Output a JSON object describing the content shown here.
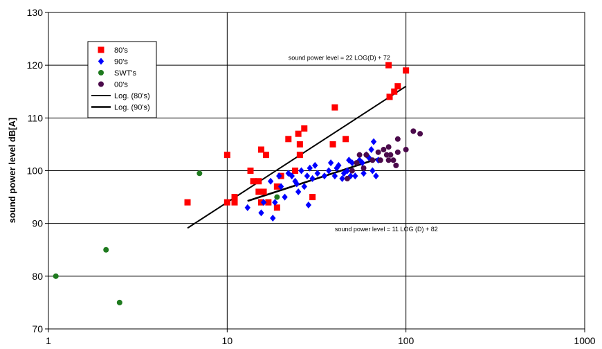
{
  "chart_data": {
    "type": "scatter",
    "title": "",
    "xlabel": "",
    "ylabel": "sound power level dB[A]",
    "x_scale": "log",
    "xlim": [
      1,
      1000
    ],
    "ylim": [
      70,
      130
    ],
    "x_ticks": [
      1,
      10,
      100,
      1000
    ],
    "x_tick_labels": [
      "1",
      "10",
      "100",
      "1000"
    ],
    "y_ticks": [
      70,
      80,
      90,
      100,
      110,
      120,
      130
    ],
    "y_tick_labels": [
      "70",
      "80",
      "90",
      "100",
      "110",
      "120",
      "130"
    ],
    "grid": true,
    "legend_position": "top-left",
    "series": [
      {
        "name": "80's",
        "marker": "square",
        "color": "#ff0000",
        "points": [
          [
            6,
            94
          ],
          [
            10,
            103
          ],
          [
            10,
            94
          ],
          [
            11,
            94
          ],
          [
            11,
            95
          ],
          [
            13.5,
            100
          ],
          [
            14,
            98
          ],
          [
            15,
            98
          ],
          [
            15,
            96
          ],
          [
            15.5,
            104
          ],
          [
            15.5,
            94
          ],
          [
            16,
            96
          ],
          [
            16.5,
            103
          ],
          [
            17,
            94
          ],
          [
            19,
            97
          ],
          [
            19,
            93
          ],
          [
            20,
            99
          ],
          [
            22,
            106
          ],
          [
            24,
            100
          ],
          [
            25,
            107
          ],
          [
            25.5,
            103
          ],
          [
            25.5,
            105
          ],
          [
            27,
            108
          ],
          [
            30,
            95
          ],
          [
            39,
            105
          ],
          [
            40,
            112
          ],
          [
            46,
            106
          ],
          [
            80,
            120
          ],
          [
            81,
            114
          ],
          [
            86,
            115
          ],
          [
            90,
            116
          ],
          [
            100,
            119
          ]
        ]
      },
      {
        "name": "90's",
        "marker": "diamond",
        "color": "#0000ff",
        "points": [
          [
            13,
            93
          ],
          [
            15.5,
            92
          ],
          [
            16,
            94
          ],
          [
            17.5,
            98
          ],
          [
            18,
            91
          ],
          [
            18.5,
            94
          ],
          [
            19.5,
            99
          ],
          [
            20,
            97
          ],
          [
            21,
            95
          ],
          [
            22,
            99.5
          ],
          [
            23,
            99
          ],
          [
            24,
            98
          ],
          [
            24.5,
            97.5
          ],
          [
            25,
            96
          ],
          [
            26,
            100
          ],
          [
            27,
            97
          ],
          [
            28,
            99
          ],
          [
            28.5,
            93.5
          ],
          [
            29,
            100.5
          ],
          [
            30,
            98.5
          ],
          [
            31,
            101
          ],
          [
            32,
            99.5
          ],
          [
            35,
            99
          ],
          [
            37,
            100
          ],
          [
            38,
            101.5
          ],
          [
            40,
            99
          ],
          [
            41,
            100.5
          ],
          [
            42,
            101
          ],
          [
            44,
            98.5
          ],
          [
            45,
            99.5
          ],
          [
            47,
            100
          ],
          [
            48,
            102
          ],
          [
            49,
            99
          ],
          [
            50,
            101.5
          ],
          [
            52,
            99
          ],
          [
            55,
            102
          ],
          [
            57,
            101.5
          ],
          [
            58,
            99.5
          ],
          [
            60,
            103
          ],
          [
            62,
            102.5
          ],
          [
            64,
            104
          ],
          [
            65,
            100
          ],
          [
            66,
            105.5
          ],
          [
            68,
            99
          ],
          [
            70,
            102
          ]
        ]
      },
      {
        "name": "SWT's",
        "marker": "circle",
        "color": "#1e7a1e",
        "points": [
          [
            1.1,
            80
          ],
          [
            2.1,
            85
          ],
          [
            2.5,
            75
          ],
          [
            7,
            99.5
          ],
          [
            19,
            95
          ]
        ]
      },
      {
        "name": "00's",
        "marker": "circle",
        "color": "#4b0a4b",
        "points": [
          [
            47,
            98.5
          ],
          [
            50,
            100
          ],
          [
            53,
            101.5
          ],
          [
            55,
            103
          ],
          [
            58,
            100.5
          ],
          [
            60,
            103
          ],
          [
            65,
            102
          ],
          [
            70,
            103.5
          ],
          [
            72,
            102
          ],
          [
            75,
            104
          ],
          [
            78,
            103
          ],
          [
            80,
            102
          ],
          [
            80,
            104.5
          ],
          [
            82,
            103
          ],
          [
            85,
            102
          ],
          [
            88,
            101
          ],
          [
            90,
            103.5
          ],
          [
            90,
            106
          ],
          [
            100,
            104
          ],
          [
            110,
            107.5
          ],
          [
            120,
            107
          ]
        ]
      }
    ],
    "trendlines": [
      {
        "name": "Log. (80's)",
        "x_range": [
          6,
          100
        ],
        "equation": "sound power level = 22 LOG(D) + 72",
        "a": 22,
        "b": 72,
        "width": 2
      },
      {
        "name": "Log. (90's)",
        "x_range": [
          13,
          70
        ],
        "equation": "sound power level = 11 LOG (D) + 82",
        "a": 11,
        "b": 82,
        "width": 2.6
      }
    ],
    "annotations": [
      {
        "text": "sound power level = 22 LOG(D) + 72",
        "x": 22,
        "y": 121
      },
      {
        "text": "sound power level = 11 LOG (D) + 82",
        "x": 40,
        "y": 88.5
      }
    ]
  }
}
